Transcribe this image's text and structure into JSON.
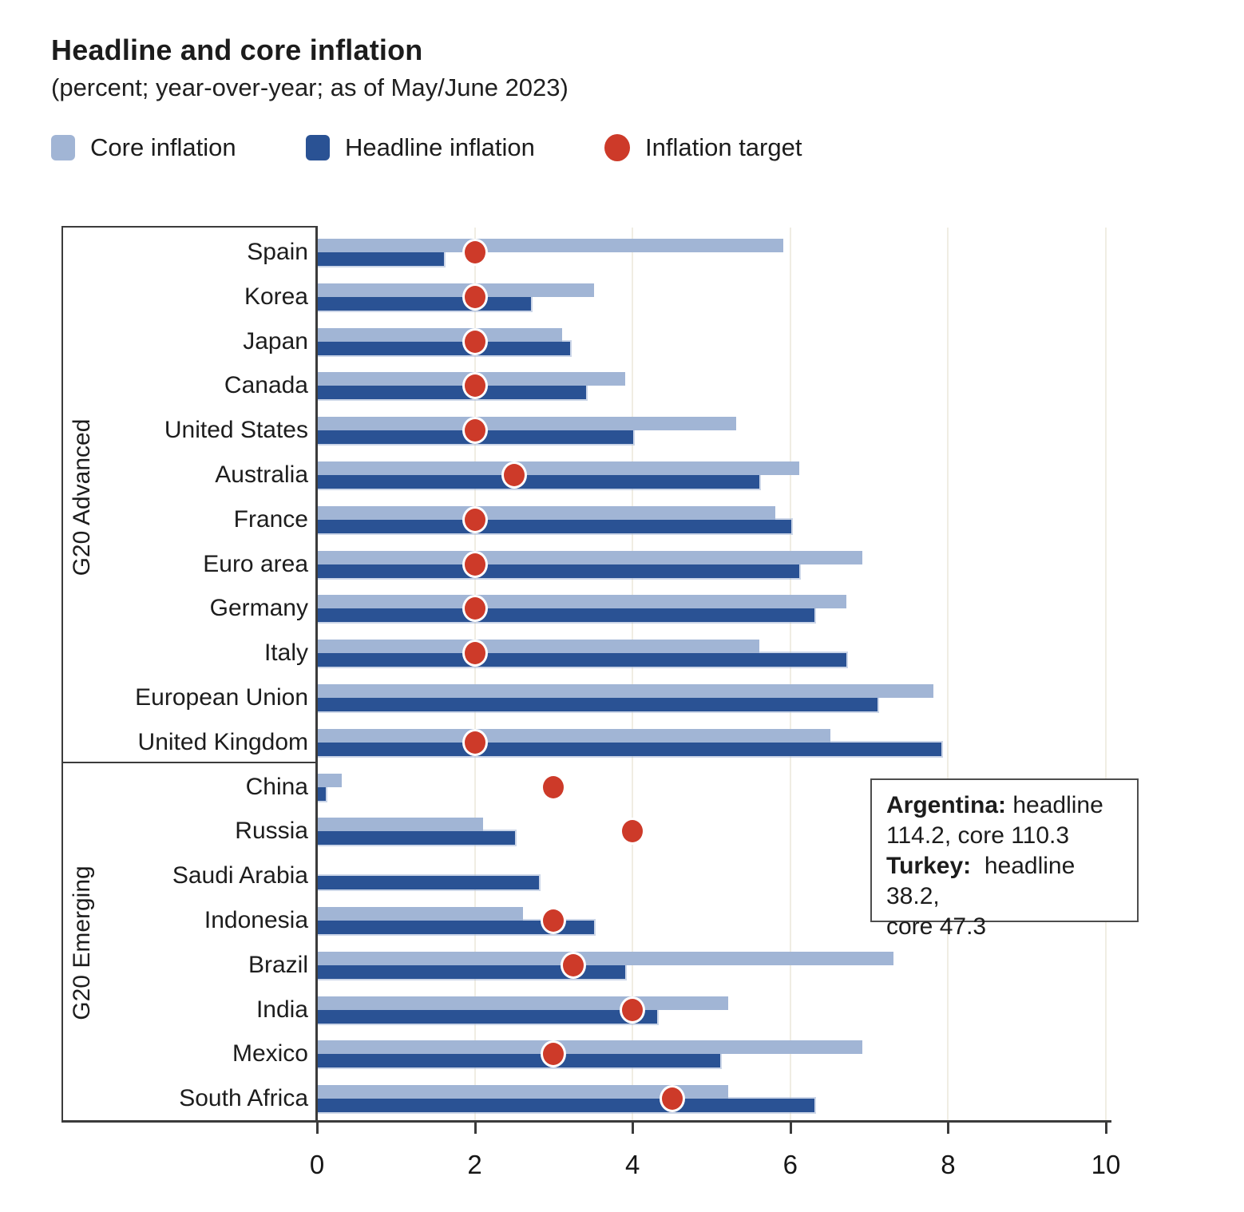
{
  "title": "Headline and core inflation",
  "subtitle": "(percent; year-over-year; as of May/June 2023)",
  "legend": {
    "items": [
      {
        "label": "Core inflation",
        "swatch": "core-swatch"
      },
      {
        "label": "Headline inflation",
        "swatch": "headline-swatch"
      },
      {
        "label": "Inflation target",
        "swatch": "target-swatch"
      }
    ]
  },
  "colors": {
    "core": "#a1b5d5",
    "headline": "#2a5294",
    "target": "#cd3a29",
    "grid": "#f0ede3",
    "axis": "#3b3b3b",
    "text": "#1c1c1c",
    "annotation_border": "#4d4d4d"
  },
  "annotation": {
    "lines": [
      {
        "bold": "Argentina:",
        "rest": " headline"
      },
      {
        "bold": "",
        "rest": "114.2, core 110.3"
      },
      {
        "bold": "Turkey:",
        "rest": "  headline 38.2,"
      },
      {
        "bold": "",
        "rest": "core 47.3"
      }
    ]
  },
  "chart_data": {
    "type": "bar",
    "orientation": "horizontal",
    "title": "Headline and core inflation",
    "units": "percent; year-over-year; as of May/June 2023",
    "xlim": [
      0,
      10
    ],
    "xticks": [
      0,
      2,
      4,
      6,
      8,
      10
    ],
    "xtick_labels": [
      "0",
      "2",
      "4",
      "6",
      "8",
      "10"
    ],
    "grid": true,
    "legend_position": "top",
    "series_names": [
      "Core inflation",
      "Headline inflation",
      "Inflation target"
    ],
    "groups": [
      {
        "name": "G20 Advanced",
        "rows": [
          {
            "country": "Spain",
            "core": 5.9,
            "headline": 1.6,
            "target": 2
          },
          {
            "country": "Korea",
            "core": 3.5,
            "headline": 2.7,
            "target": 2
          },
          {
            "country": "Japan",
            "core": 3.1,
            "headline": 3.2,
            "target": 2
          },
          {
            "country": "Canada",
            "core": 3.9,
            "headline": 3.4,
            "target": 2
          },
          {
            "country": "United States",
            "core": 5.3,
            "headline": 4.0,
            "target": 2
          },
          {
            "country": "Australia",
            "core": 6.1,
            "headline": 5.6,
            "target": 2.5
          },
          {
            "country": "France",
            "core": 5.8,
            "headline": 6.0,
            "target": 2
          },
          {
            "country": "Euro area",
            "core": 6.9,
            "headline": 6.1,
            "target": 2
          },
          {
            "country": "Germany",
            "core": 6.7,
            "headline": 6.3,
            "target": 2
          },
          {
            "country": "Italy",
            "core": 5.6,
            "headline": 6.7,
            "target": 2
          },
          {
            "country": "European Union",
            "core": 7.8,
            "headline": 7.1,
            "target": null
          },
          {
            "country": "United Kingdom",
            "core": 6.5,
            "headline": 7.9,
            "target": 2
          }
        ]
      },
      {
        "name": "G20 Emerging",
        "rows": [
          {
            "country": "China",
            "core": 0.3,
            "headline": 0.1,
            "target": 3
          },
          {
            "country": "Russia",
            "core": 2.1,
            "headline": 2.5,
            "target": 4
          },
          {
            "country": "Saudi Arabia",
            "core": null,
            "headline": 2.8,
            "target": null
          },
          {
            "country": "Indonesia",
            "core": 2.6,
            "headline": 3.5,
            "target": 3
          },
          {
            "country": "Brazil",
            "core": 7.3,
            "headline": 3.9,
            "target": 3.25
          },
          {
            "country": "India",
            "core": 5.2,
            "headline": 4.3,
            "target": 4
          },
          {
            "country": "Mexico",
            "core": 6.9,
            "headline": 5.1,
            "target": 3
          },
          {
            "country": "South Africa",
            "core": 5.2,
            "headline": 6.3,
            "target": 4.5
          }
        ]
      }
    ],
    "annotation_text": "Argentina: headline 114.2, core 110.3 | Turkey: headline 38.2, core 47.3"
  }
}
